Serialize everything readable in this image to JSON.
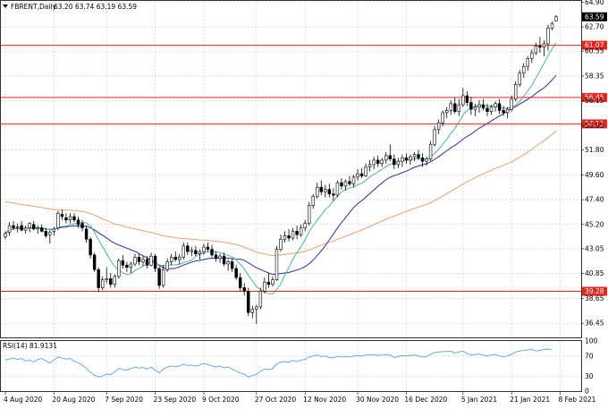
{
  "header": {
    "symbol": "FBRENT,Daily",
    "ohlc": "63.20 63.74 63.19 63.59"
  },
  "rsi_label": "RSI(14) 81.9131",
  "colors": {
    "candle_outline": "#000000",
    "level_line": "#e8251f",
    "level_tag_bg": "#e8251f",
    "price_tag_bg": "#000000",
    "ma_fast": "#3cb08c",
    "ma_mid": "#2b2f9e",
    "ma_slow": "#e8a070",
    "rsi_line": "#5aa0e6"
  },
  "chart_data": [
    {
      "type": "candlestick",
      "title": "FBRENT,Daily",
      "ylim": [
        35.2,
        65.0
      ],
      "yticks": [
        "64.90",
        "62.70",
        "60.55",
        "58.35",
        "56.15",
        "53.95",
        "51.80",
        "49.60",
        "47.40",
        "45.20",
        "43.05",
        "40.85",
        "38.65",
        "36.45"
      ],
      "xticks": [
        "4 Aug 2020",
        "20 Aug 2020",
        "7 Sep 2020",
        "23 Sep 2020",
        "9 Oct 2020",
        "27 Oct 2020",
        "12 Nov 2020",
        "30 Nov 2020",
        "16 Dec 2020",
        "5 Jan 2021",
        "21 Jan 2021",
        "8 Feb 2021"
      ],
      "xtick_index": [
        0,
        12,
        25,
        37,
        49,
        62,
        74,
        87,
        99,
        113,
        125,
        137
      ],
      "current_price": "63.59",
      "levels": [
        "61.07",
        "56.45",
        "54.11",
        "39.28"
      ],
      "candles_ohlc": [
        [
          44.1,
          44.6,
          43.9,
          44.4
        ],
        [
          44.5,
          45.4,
          44.2,
          45.1
        ],
        [
          45.1,
          45.5,
          44.7,
          44.9
        ],
        [
          44.9,
          45.3,
          44.5,
          45.0
        ],
        [
          45.1,
          45.5,
          44.6,
          44.7
        ],
        [
          44.7,
          45.1,
          44.4,
          44.9
        ],
        [
          44.9,
          45.4,
          44.5,
          45.3
        ],
        [
          45.2,
          45.5,
          44.7,
          44.8
        ],
        [
          44.8,
          45.1,
          44.4,
          44.9
        ],
        [
          44.9,
          45.2,
          44.5,
          44.6
        ],
        [
          44.6,
          44.9,
          44.0,
          44.2
        ],
        [
          44.3,
          44.7,
          43.5,
          44.5
        ],
        [
          44.6,
          45.0,
          44.2,
          44.8
        ],
        [
          44.9,
          46.4,
          44.7,
          46.2
        ],
        [
          46.1,
          46.5,
          45.6,
          45.9
        ],
        [
          45.8,
          46.2,
          45.3,
          45.6
        ],
        [
          45.6,
          46.2,
          45.3,
          45.9
        ],
        [
          45.9,
          46.2,
          45.4,
          45.6
        ],
        [
          45.6,
          45.9,
          44.9,
          45.2
        ],
        [
          45.3,
          45.6,
          44.6,
          44.9
        ],
        [
          44.8,
          45.1,
          43.6,
          43.9
        ],
        [
          43.9,
          44.1,
          42.2,
          42.5
        ],
        [
          42.5,
          42.7,
          41.0,
          41.2
        ],
        [
          41.2,
          41.4,
          39.2,
          39.6
        ],
        [
          39.6,
          40.6,
          39.4,
          40.3
        ],
        [
          40.3,
          41.4,
          40.0,
          40.4
        ],
        [
          40.4,
          40.9,
          39.6,
          39.9
        ],
        [
          39.9,
          40.8,
          39.6,
          40.6
        ],
        [
          40.6,
          42.2,
          40.4,
          42.0
        ],
        [
          42.0,
          42.5,
          41.3,
          41.6
        ],
        [
          41.6,
          41.9,
          41.0,
          41.4
        ],
        [
          41.4,
          41.9,
          40.9,
          41.7
        ],
        [
          41.7,
          42.6,
          41.5,
          42.3
        ],
        [
          42.3,
          42.6,
          41.6,
          41.9
        ],
        [
          41.9,
          42.4,
          41.5,
          42.1
        ],
        [
          42.1,
          42.4,
          41.3,
          41.6
        ],
        [
          41.6,
          42.7,
          41.5,
          42.4
        ],
        [
          42.4,
          42.6,
          41.0,
          41.3
        ],
        [
          41.3,
          41.5,
          39.5,
          39.8
        ],
        [
          39.8,
          41.6,
          39.6,
          41.2
        ],
        [
          41.2,
          42.2,
          41.0,
          41.9
        ],
        [
          41.9,
          42.6,
          41.6,
          42.3
        ],
        [
          42.3,
          42.8,
          41.9,
          42.1
        ],
        [
          42.1,
          42.6,
          41.7,
          42.3
        ],
        [
          42.3,
          43.6,
          42.1,
          43.3
        ],
        [
          43.3,
          43.6,
          42.5,
          42.8
        ],
        [
          42.8,
          43.2,
          42.4,
          42.9
        ],
        [
          42.9,
          43.3,
          42.4,
          42.6
        ],
        [
          42.6,
          43.0,
          42.1,
          42.8
        ],
        [
          42.8,
          43.5,
          42.5,
          43.2
        ],
        [
          43.2,
          43.6,
          42.8,
          43.0
        ],
        [
          43.0,
          43.4,
          42.3,
          42.5
        ],
        [
          42.5,
          42.8,
          41.9,
          42.2
        ],
        [
          42.2,
          42.6,
          41.8,
          42.4
        ],
        [
          42.4,
          42.7,
          41.5,
          41.7
        ],
        [
          41.7,
          42.1,
          41.1,
          41.9
        ],
        [
          41.9,
          42.2,
          41.0,
          41.3
        ],
        [
          41.3,
          41.6,
          40.3,
          40.5
        ],
        [
          40.5,
          40.9,
          39.3,
          39.6
        ],
        [
          39.6,
          40.0,
          38.9,
          39.3
        ],
        [
          39.3,
          39.6,
          37.1,
          37.4
        ],
        [
          37.4,
          38.0,
          36.9,
          37.7
        ],
        [
          37.7,
          38.1,
          36.4,
          37.9
        ],
        [
          37.9,
          39.6,
          37.7,
          39.3
        ],
        [
          39.3,
          40.5,
          39.1,
          40.1
        ],
        [
          40.1,
          40.9,
          39.6,
          39.9
        ],
        [
          39.9,
          40.6,
          39.7,
          40.3
        ],
        [
          40.3,
          43.3,
          40.2,
          43.0
        ],
        [
          43.0,
          44.3,
          42.8,
          43.9
        ],
        [
          43.9,
          44.6,
          43.6,
          44.2
        ],
        [
          44.2,
          44.8,
          43.7,
          44.0
        ],
        [
          44.0,
          44.9,
          43.8,
          44.6
        ],
        [
          44.6,
          45.1,
          43.9,
          44.3
        ],
        [
          44.3,
          45.2,
          44.1,
          44.9
        ],
        [
          44.9,
          45.6,
          44.6,
          45.3
        ],
        [
          45.3,
          47.2,
          45.1,
          46.9
        ],
        [
          46.9,
          47.9,
          46.6,
          47.7
        ],
        [
          47.7,
          48.9,
          47.5,
          48.5
        ],
        [
          48.5,
          49.1,
          47.8,
          48.1
        ],
        [
          48.1,
          48.7,
          47.6,
          48.3
        ],
        [
          48.3,
          48.8,
          47.6,
          47.9
        ],
        [
          47.9,
          48.4,
          47.3,
          47.8
        ],
        [
          47.8,
          49.1,
          47.6,
          48.9
        ],
        [
          48.9,
          49.3,
          48.3,
          48.6
        ],
        [
          48.6,
          49.2,
          48.2,
          49.0
        ],
        [
          49.0,
          49.5,
          48.6,
          48.8
        ],
        [
          48.8,
          49.6,
          48.5,
          49.4
        ],
        [
          49.4,
          50.1,
          49.1,
          49.7
        ],
        [
          49.7,
          50.2,
          49.3,
          49.5
        ],
        [
          49.5,
          50.6,
          49.4,
          50.3
        ],
        [
          50.3,
          50.9,
          49.9,
          50.5
        ],
        [
          50.5,
          51.2,
          50.1,
          50.9
        ],
        [
          50.9,
          51.3,
          50.3,
          50.6
        ],
        [
          50.6,
          51.1,
          50.3,
          50.9
        ],
        [
          50.9,
          51.6,
          50.6,
          51.3
        ],
        [
          51.3,
          52.3,
          50.8,
          51.0
        ],
        [
          51.0,
          51.4,
          50.1,
          50.5
        ],
        [
          50.5,
          51.1,
          50.2,
          50.8
        ],
        [
          50.8,
          51.4,
          50.3,
          51.1
        ],
        [
          51.1,
          51.5,
          50.6,
          50.9
        ],
        [
          50.9,
          51.4,
          50.5,
          51.2
        ],
        [
          51.2,
          51.6,
          50.8,
          51.4
        ],
        [
          51.4,
          51.8,
          50.9,
          51.1
        ],
        [
          51.1,
          51.5,
          50.3,
          50.8
        ],
        [
          50.8,
          51.2,
          50.4,
          51.0
        ],
        [
          51.0,
          52.6,
          50.8,
          52.3
        ],
        [
          52.3,
          53.9,
          52.1,
          53.6
        ],
        [
          53.6,
          54.5,
          53.2,
          54.2
        ],
        [
          54.2,
          55.3,
          53.9,
          55.1
        ],
        [
          55.1,
          55.6,
          54.6,
          55.3
        ],
        [
          55.3,
          56.2,
          54.9,
          55.9
        ],
        [
          55.9,
          56.4,
          55.0,
          55.2
        ],
        [
          55.2,
          56.3,
          54.8,
          55.8
        ],
        [
          55.8,
          57.3,
          55.6,
          56.6
        ],
        [
          56.6,
          57.0,
          55.7,
          56.0
        ],
        [
          56.0,
          56.5,
          54.9,
          55.4
        ],
        [
          55.4,
          55.9,
          54.8,
          55.6
        ],
        [
          55.6,
          56.2,
          55.1,
          55.8
        ],
        [
          55.8,
          56.3,
          55.3,
          55.5
        ],
        [
          55.5,
          55.9,
          54.8,
          55.2
        ],
        [
          55.2,
          55.8,
          54.9,
          55.6
        ],
        [
          55.6,
          56.1,
          55.2,
          55.9
        ],
        [
          55.9,
          56.3,
          55.0,
          55.3
        ],
        [
          55.3,
          55.7,
          54.8,
          55.1
        ],
        [
          55.1,
          55.6,
          54.6,
          55.4
        ],
        [
          55.4,
          56.6,
          55.2,
          56.3
        ],
        [
          56.3,
          57.9,
          56.1,
          57.6
        ],
        [
          57.6,
          58.9,
          57.4,
          58.6
        ],
        [
          58.6,
          59.5,
          58.2,
          59.2
        ],
        [
          59.2,
          60.1,
          58.8,
          59.9
        ],
        [
          59.9,
          60.7,
          59.5,
          60.4
        ],
        [
          60.4,
          61.3,
          60.2,
          61.0
        ],
        [
          61.0,
          61.8,
          60.4,
          60.9
        ],
        [
          60.9,
          61.5,
          60.1,
          61.2
        ],
        [
          61.2,
          62.9,
          60.6,
          62.6
        ],
        [
          62.6,
          63.2,
          62.4,
          63.0
        ],
        [
          63.2,
          63.74,
          63.19,
          63.59
        ]
      ]
    },
    {
      "type": "line",
      "title": "RSI(14) 81.9131",
      "ylim": [
        0,
        100
      ],
      "yticks": [
        "100",
        "70",
        "30",
        "0"
      ],
      "series": [
        {
          "values": [
            62,
            64,
            66,
            63,
            65,
            60,
            62,
            58,
            63,
            65,
            60,
            56,
            62,
            68,
            66,
            64,
            65,
            60,
            56,
            52,
            45,
            38,
            32,
            28,
            30,
            34,
            33,
            38,
            45,
            43,
            42,
            45,
            48,
            46,
            47,
            44,
            48,
            42,
            36,
            44,
            48,
            50,
            49,
            50,
            54,
            51,
            52,
            50,
            52,
            55,
            53,
            50,
            48,
            50,
            46,
            48,
            44,
            40,
            36,
            34,
            28,
            31,
            33,
            40,
            44,
            43,
            45,
            54,
            58,
            59,
            58,
            61,
            59,
            62,
            63,
            68,
            70,
            72,
            69,
            70,
            67,
            66,
            70,
            68,
            69,
            68,
            70,
            71,
            70,
            72,
            72,
            73,
            71,
            72,
            73,
            72,
            67,
            69,
            71,
            70,
            71,
            72,
            70,
            68,
            69,
            74,
            77,
            78,
            79,
            79,
            80,
            76,
            78,
            80,
            75,
            72,
            73,
            74,
            72,
            70,
            72,
            73,
            70,
            69,
            70,
            74,
            78,
            80,
            81,
            82,
            83,
            80,
            81,
            83,
            84,
            81.9131
          ]
        }
      ]
    }
  ]
}
